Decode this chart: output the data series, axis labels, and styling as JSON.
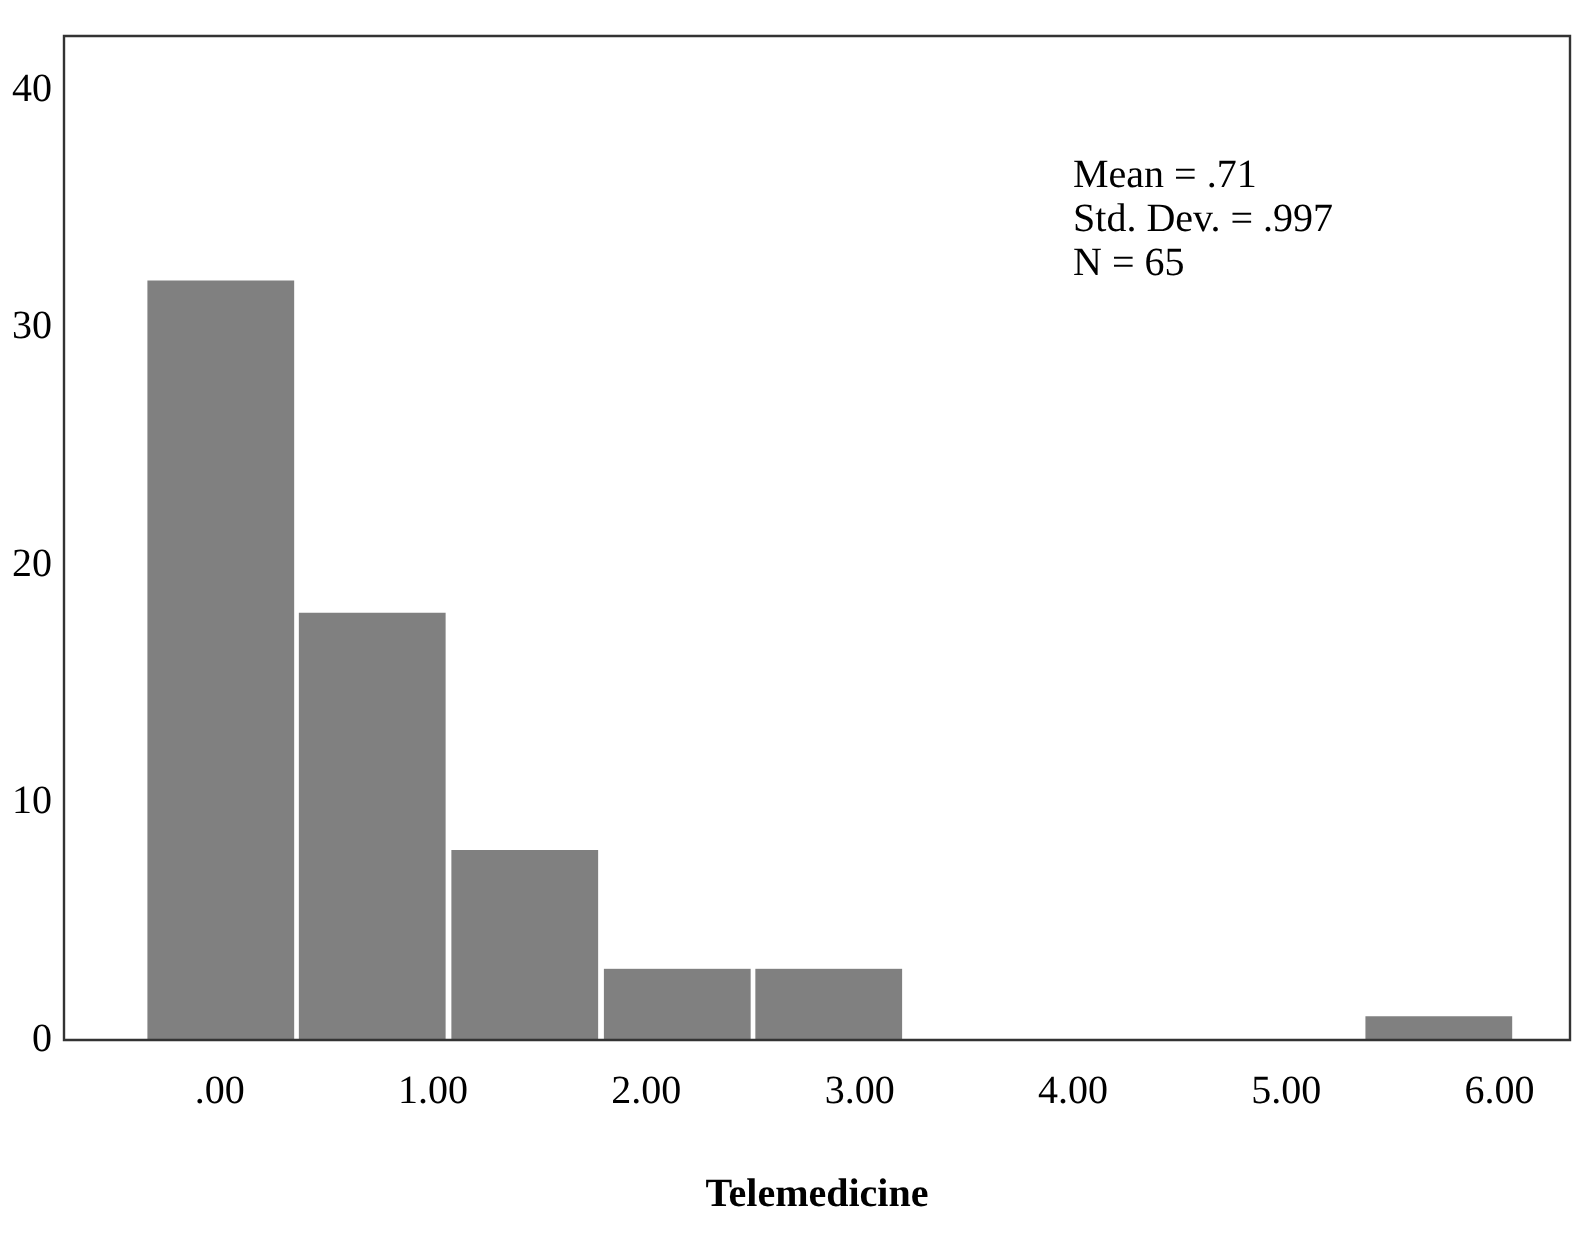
{
  "chart_data": {
    "type": "histogram",
    "xlabel": "Telemedicine",
    "bins": [
      -0.35,
      0.36,
      1.07,
      1.79,
      2.5,
      3.21,
      3.93,
      4.64,
      5.36,
      6.07
    ],
    "values": [
      32,
      18,
      8,
      3,
      3,
      0,
      0,
      0,
      1
    ],
    "color": "#808080",
    "xlim": [
      -0.73,
      6.33
    ],
    "xticks": [
      {
        "value": 0,
        "label": ".00"
      },
      {
        "value": 1,
        "label": "1.00"
      },
      {
        "value": 2,
        "label": "2.00"
      },
      {
        "value": 3,
        "label": "3.00"
      },
      {
        "value": 4,
        "label": "4.00"
      },
      {
        "value": 5,
        "label": "5.00"
      },
      {
        "value": 6,
        "label": "6.00"
      }
    ],
    "ylim": [
      0,
      42.3
    ],
    "yticks": [
      0,
      10,
      20,
      30,
      40
    ],
    "grid": false,
    "legend": false,
    "annotations": [
      "Mean = .71",
      "Std. Dev. = .997",
      "N = 65"
    ]
  }
}
